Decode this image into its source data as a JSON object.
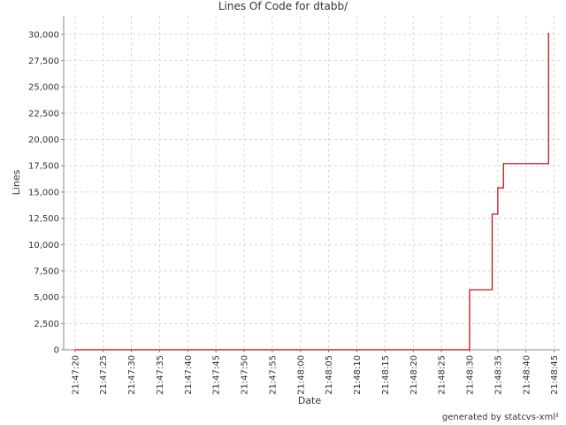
{
  "chart_data": {
    "type": "step",
    "title": "Lines Of Code for dtabb/",
    "xlabel": "Date",
    "ylabel": "Lines",
    "footer": "generated by statcvs-xml²",
    "x": [
      "21:47:20",
      "21:48:30",
      "21:48:34",
      "21:48:35",
      "21:48:36",
      "21:48:44"
    ],
    "series": [
      {
        "name": "Lines",
        "color": "#c00000",
        "values": [
          0,
          5700,
          12900,
          15400,
          17700,
          30100
        ]
      }
    ],
    "xlim": [
      "21:47:18",
      "21:48:46"
    ],
    "xticks": [
      "21:47:20",
      "21:47:25",
      "21:47:30",
      "21:47:35",
      "21:47:40",
      "21:47:45",
      "21:47:50",
      "21:47:55",
      "21:48:00",
      "21:48:05",
      "21:48:10",
      "21:48:15",
      "21:48:20",
      "21:48:25",
      "21:48:30",
      "21:48:35",
      "21:48:40",
      "21:48:45"
    ],
    "ylim": [
      0,
      31750
    ],
    "yticks": [
      0,
      {
        "value": 2500,
        "label": "2,500"
      },
      {
        "value": 5000,
        "label": "5,000"
      },
      {
        "value": 7500,
        "label": "7,500"
      },
      {
        "value": 10000,
        "label": "10,000"
      },
      {
        "value": 12500,
        "label": "12,500"
      },
      {
        "value": 15000,
        "label": "15,000"
      },
      {
        "value": 17500,
        "label": "17,500"
      },
      {
        "value": 20000,
        "label": "20,000"
      },
      {
        "value": 22500,
        "label": "22,500"
      },
      {
        "value": 25000,
        "label": "25,000"
      },
      {
        "value": 27500,
        "label": "27,500"
      },
      {
        "value": 30000,
        "label": "30,000"
      }
    ],
    "grid": true
  }
}
